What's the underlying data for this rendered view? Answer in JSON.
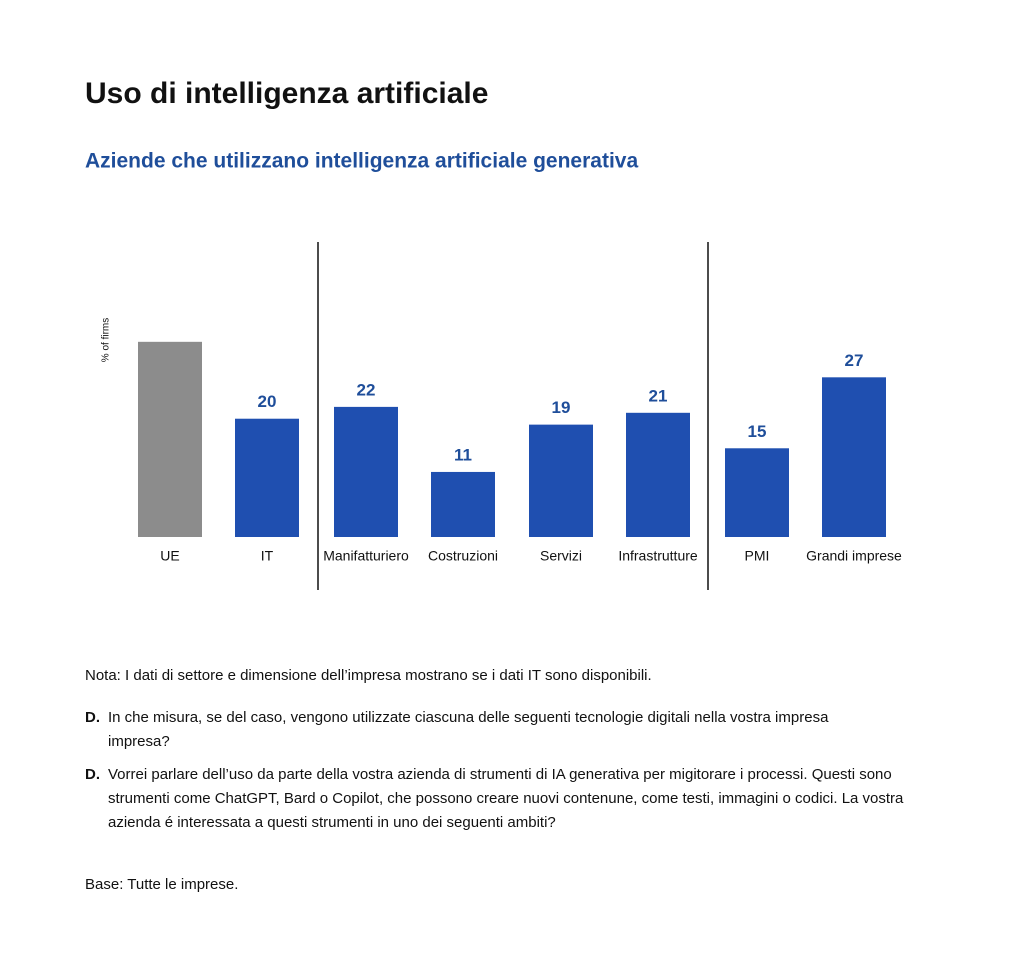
{
  "chart_data": {
    "type": "bar",
    "title": "Uso di intelligenza artificiale",
    "subtitle": "Aziende che utilizzano intelligenza artificiale generativa",
    "y_label": "% of firms",
    "categories": [
      "UE",
      "IT",
      "Manifatturiero",
      "Costruzioni",
      "Servizi",
      "Infrastrutture",
      "PMI",
      "Grandi imprese"
    ],
    "values": [
      33,
      20,
      22,
      11,
      19,
      21,
      15,
      27
    ],
    "value_labels": [
      null,
      "20",
      "22",
      "11",
      "19",
      "21",
      "15",
      "27"
    ],
    "colors": [
      "#8c8c8c",
      "#1f4fb0",
      "#1f4fb0",
      "#1f4fb0",
      "#1f4fb0",
      "#1f4fb0",
      "#1f4fb0",
      "#1f4fb0"
    ],
    "ylim": [
      0,
      35
    ]
  },
  "notes": {
    "nota": "Nota: I dati di settore e dimensione dell’impresa mostrano se i dati IT sono disponibili.",
    "questions": [
      {
        "marker": "D.",
        "text": "In che misura, se del caso, vengono utilizzate ciascuna delle seguenti tecnologie digitali nella vostra impresa impresa?"
      },
      {
        "marker": "D.",
        "text": "Vorrei parlare dell’uso da parte della vostra azienda di strumenti di IA generativa per migitorare i processi. Questi sono strumenti come ChatGPT, Bard o Copilot, che possono creare nuovi contenune, come testi, immagini o codici. La vostra azienda é interessata a questi strumenti in uno dei seguenti ambiti?"
      }
    ],
    "base": "Base: Tutte le imprese."
  }
}
